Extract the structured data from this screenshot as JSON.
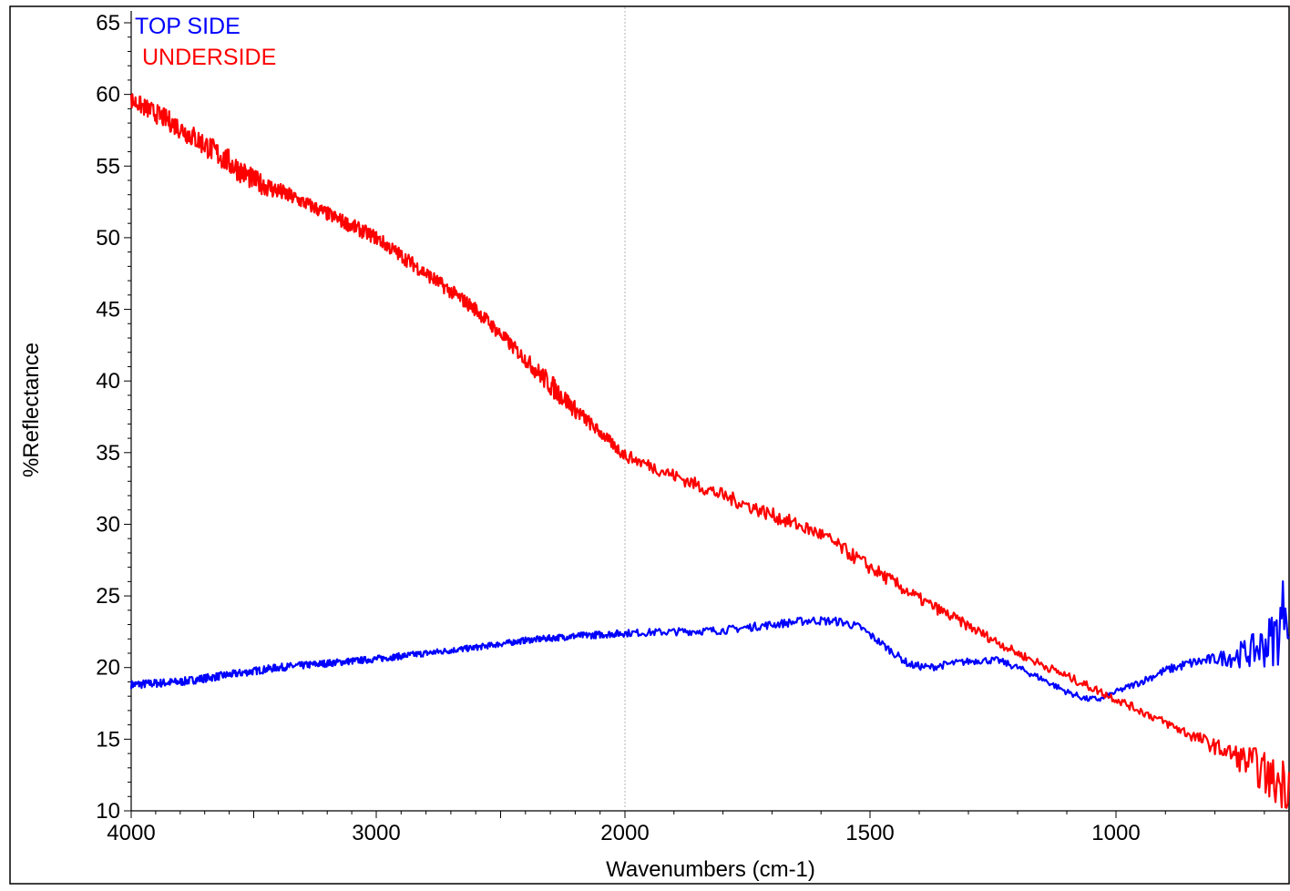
{
  "chart_data": {
    "type": "line",
    "title": "",
    "xlabel": "Wavenumbers (cm-1)",
    "ylabel": "%Reflectance",
    "xlim": [
      4000,
      650
    ],
    "ylim": [
      10,
      65
    ],
    "x_reversed": true,
    "x_ticks": [
      4000,
      3000,
      2000,
      1500,
      1000
    ],
    "y_ticks": [
      10,
      15,
      20,
      25,
      30,
      35,
      40,
      45,
      50,
      55,
      60,
      65
    ],
    "grid": "single vertical dotted line at 2000",
    "legend_position": "top-left",
    "series": [
      {
        "name": "TOP SIDE",
        "color": "#0000ff",
        "points": [
          [
            4000,
            18.8
          ],
          [
            3800,
            19.0
          ],
          [
            3600,
            19.5
          ],
          [
            3400,
            20.0
          ],
          [
            3200,
            20.3
          ],
          [
            3000,
            20.6
          ],
          [
            2800,
            21.0
          ],
          [
            2600,
            21.4
          ],
          [
            2400,
            21.9
          ],
          [
            2200,
            22.2
          ],
          [
            2000,
            22.4
          ],
          [
            1900,
            22.5
          ],
          [
            1800,
            22.6
          ],
          [
            1700,
            23.0
          ],
          [
            1620,
            23.3
          ],
          [
            1560,
            23.2
          ],
          [
            1520,
            22.8
          ],
          [
            1470,
            21.5
          ],
          [
            1420,
            20.2
          ],
          [
            1380,
            20.0
          ],
          [
            1330,
            20.3
          ],
          [
            1280,
            20.5
          ],
          [
            1240,
            20.5
          ],
          [
            1200,
            20.0
          ],
          [
            1150,
            19.2
          ],
          [
            1100,
            18.3
          ],
          [
            1060,
            17.8
          ],
          [
            1030,
            17.8
          ],
          [
            1000,
            18.3
          ],
          [
            950,
            19.0
          ],
          [
            900,
            19.8
          ],
          [
            850,
            20.3
          ],
          [
            800,
            20.6
          ],
          [
            760,
            20.8
          ],
          [
            720,
            21.2
          ],
          [
            690,
            21.8
          ],
          [
            670,
            22.5
          ],
          [
            660,
            24.5
          ],
          [
            655,
            25.5
          ],
          [
            650,
            21.5
          ]
        ],
        "noise": [
          [
            4000,
            0.3
          ],
          [
            2500,
            0.2
          ],
          [
            1600,
            0.3
          ],
          [
            1000,
            0.2
          ],
          [
            800,
            0.4
          ],
          [
            720,
            1.2
          ],
          [
            660,
            2.5
          ],
          [
            650,
            2.5
          ]
        ]
      },
      {
        "name": "UNDERSIDE",
        "color": "#ff0000",
        "points": [
          [
            4000,
            59.6
          ],
          [
            3850,
            58.2
          ],
          [
            3700,
            56.5
          ],
          [
            3500,
            54.0
          ],
          [
            3300,
            52.5
          ],
          [
            3000,
            50.0
          ],
          [
            2800,
            47.5
          ],
          [
            2600,
            45.0
          ],
          [
            2400,
            41.5
          ],
          [
            2200,
            38.0
          ],
          [
            2000,
            34.8
          ],
          [
            1800,
            32.0
          ],
          [
            1600,
            29.3
          ],
          [
            1500,
            27.0
          ],
          [
            1400,
            24.8
          ],
          [
            1200,
            21.0
          ],
          [
            1000,
            17.8
          ],
          [
            800,
            14.5
          ],
          [
            720,
            13.2
          ],
          [
            680,
            12.0
          ],
          [
            650,
            12.0
          ]
        ],
        "noise": [
          [
            4000,
            0.6
          ],
          [
            3600,
            0.9
          ],
          [
            3300,
            0.5
          ],
          [
            2400,
            0.5
          ],
          [
            2300,
            0.8
          ],
          [
            2100,
            0.4
          ],
          [
            1800,
            0.5
          ],
          [
            1500,
            0.5
          ],
          [
            1200,
            0.3
          ],
          [
            900,
            0.3
          ],
          [
            780,
            0.6
          ],
          [
            700,
            1.5
          ],
          [
            650,
            2.0
          ]
        ]
      }
    ]
  }
}
